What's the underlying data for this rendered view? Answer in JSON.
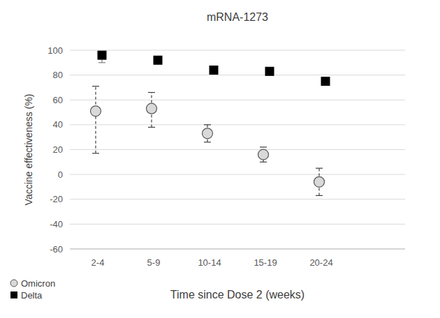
{
  "chart_data": {
    "type": "scatter",
    "title": "mRNA-1273",
    "x_label": "Time since Dose 2 (weeks)",
    "y_label": "Vaccine effectiveness (%)",
    "categories": [
      "2-4",
      "5-9",
      "10-14",
      "15-19",
      "20-24",
      null
    ],
    "series": [
      {
        "name": "Omicron",
        "color": "#d9d9d9",
        "marker": "circle",
        "values": [
          51,
          53,
          33,
          16,
          -6,
          null
        ],
        "ci_low": [
          17,
          38,
          26,
          10,
          -17,
          null
        ],
        "ci_high": [
          71,
          66,
          40,
          22,
          5,
          null
        ]
      },
      {
        "name": "Delta",
        "color": "#000000",
        "marker": "square",
        "values": [
          96,
          92,
          84,
          83,
          75,
          null
        ],
        "ci_low": [
          90,
          90,
          83,
          82,
          74,
          null
        ],
        "ci_high": [
          97,
          94,
          85,
          84,
          76,
          null
        ]
      }
    ],
    "ylim": [
      -60,
      100
    ],
    "yticks": [
      -60,
      -40,
      -20,
      0,
      20,
      40,
      60,
      80,
      100
    ],
    "grid": true,
    "legend": "bottom-left"
  }
}
